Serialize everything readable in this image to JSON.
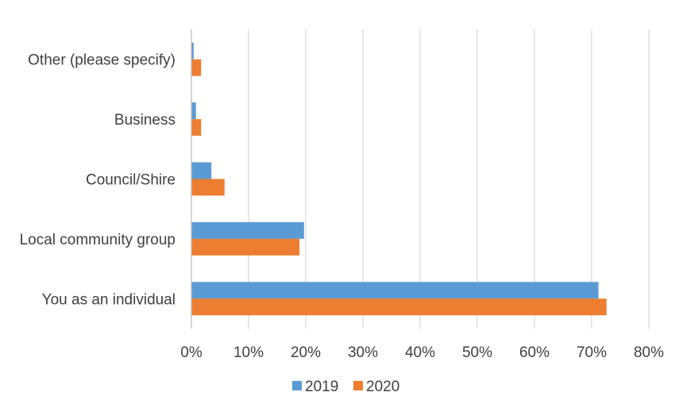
{
  "chart_data": {
    "type": "bar",
    "orientation": "horizontal",
    "title": "",
    "xlabel": "",
    "ylabel": "",
    "categories": [
      "You as an individual",
      "Local community group",
      "Council/Shire",
      "Business",
      "Other (please specify)"
    ],
    "series": [
      {
        "name": "2019",
        "color": "#5B9BD5",
        "values": [
          71.2,
          19.7,
          3.5,
          0.8,
          0.4
        ]
      },
      {
        "name": "2020",
        "color": "#ED7D31",
        "values": [
          72.6,
          18.9,
          5.8,
          1.7,
          1.7
        ]
      }
    ],
    "xlim": [
      0,
      80
    ],
    "xticks": [
      "0%",
      "10%",
      "20%",
      "30%",
      "40%",
      "50%",
      "60%",
      "70%",
      "80%"
    ],
    "grid": true,
    "legend_position": "bottom"
  }
}
